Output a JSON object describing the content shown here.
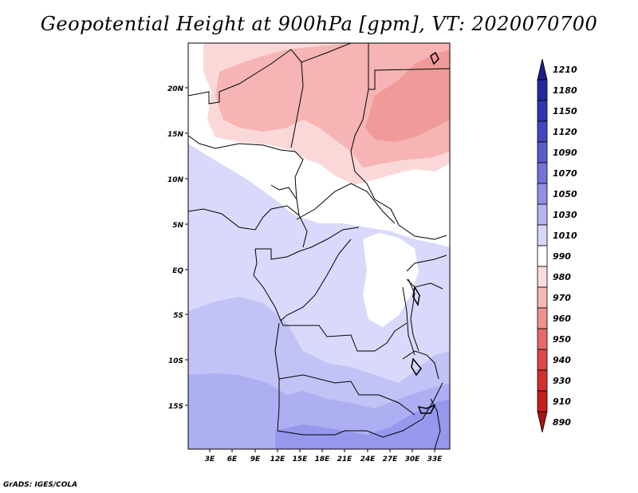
{
  "title": "Geopotential Height at 900hPa [gpm], VT: 2020070700",
  "credit": "GrADS: IGES/COLA",
  "map": {
    "lon_ticks": [
      "3E",
      "6E",
      "9E",
      "12E",
      "15E",
      "18E",
      "21E",
      "24E",
      "27E",
      "30E",
      "33E"
    ],
    "lat_ticks": [
      "20N",
      "15N",
      "10N",
      "5N",
      "EQ",
      "5S",
      "10S",
      "15S"
    ]
  },
  "colorbar": {
    "labels": [
      "1210",
      "1180",
      "1150",
      "1120",
      "1090",
      "1070",
      "1050",
      "1030",
      "1010",
      "990",
      "980",
      "970",
      "960",
      "950",
      "940",
      "930",
      "910",
      "890"
    ],
    "colors": [
      "#1c1c8c",
      "#2626a0",
      "#3333b4",
      "#4646c4",
      "#5b5bd0",
      "#7373dc",
      "#9090e6",
      "#b4b4f0",
      "#d7d7f8",
      "#ffffff",
      "#fcdcdc",
      "#f7b8b8",
      "#f09090",
      "#e86a6a",
      "#e04646",
      "#d42f2f",
      "#c41e1e",
      "#a81414"
    ]
  },
  "map_colors": {
    "white": "#ffffff",
    "pink_light": "#fbd8d8",
    "pink_mid": "#f6b4b4",
    "pink_dark": "#f09a9a",
    "blue_1": "#d9d9fb",
    "blue_2": "#c2c2f6",
    "blue_3": "#aeaef2",
    "blue_4": "#9797ee"
  }
}
